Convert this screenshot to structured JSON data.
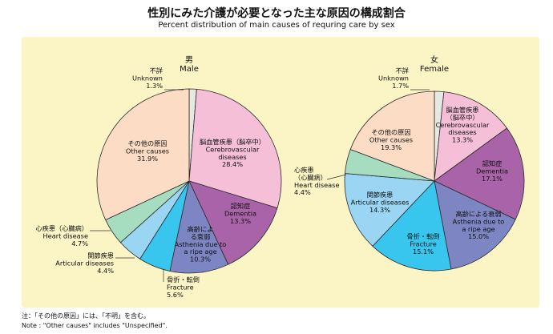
{
  "title_jp": "性別にみた介護が必要となった主な原因の構成割合",
  "title_en": "Percent distribution of main causes of requring care by sex",
  "note_jp": "注：「その他の原因」には、「不明」を含む。",
  "note_en": "Note : \"Other causes\" includes \"Unspecified\".",
  "colors": {
    "panel": "#fbf4c4",
    "cerebrovascular": "#f5bfd7",
    "dementia": "#a963a8",
    "asthenia": "#7d86c3",
    "fracture": "#38c6ee",
    "articular": "#9ad6f3",
    "heart": "#a6ddc0",
    "other": "#fcdcc4",
    "unknown": "#e8e8e2"
  },
  "chart_data": [
    {
      "type": "pie",
      "id": "male",
      "title_jp": "男",
      "title_en": "Male",
      "categories": [
        "unknown",
        "cerebrovascular",
        "dementia",
        "asthenia",
        "fracture",
        "articular",
        "heart",
        "other"
      ],
      "values": [
        1.3,
        28.4,
        13.3,
        10.3,
        5.6,
        4.4,
        4.7,
        31.9
      ],
      "slices": [
        {
          "key": "unknown",
          "value": 1.3,
          "label_jp": "不詳",
          "label_en": "Unknown",
          "value_label": "1.3%"
        },
        {
          "key": "cerebrovascular",
          "value": 28.4,
          "label_jp": "脳血管疾患（脳卒中）",
          "label_en": "Cerebrovascular diseases",
          "value_label": "28.4%"
        },
        {
          "key": "dementia",
          "value": 13.3,
          "label_jp": "認知症",
          "label_en": "Dementia",
          "value_label": "13.3%"
        },
        {
          "key": "asthenia",
          "value": 10.3,
          "label_jp": "高齢による衰弱",
          "label_en": "Asthenia due to a ripe age",
          "value_label": "10.3%"
        },
        {
          "key": "fracture",
          "value": 5.6,
          "label_jp": "骨折・転倒",
          "label_en": "Fracture",
          "value_label": "5.6%"
        },
        {
          "key": "articular",
          "value": 4.4,
          "label_jp": "関節疾患",
          "label_en": "Articular diseases",
          "value_label": "4.4%"
        },
        {
          "key": "heart",
          "value": 4.7,
          "label_jp": "心疾患（心臓病）",
          "label_en": "Heart disease",
          "value_label": "4.7%"
        },
        {
          "key": "other",
          "value": 31.9,
          "label_jp": "その他の原因",
          "label_en": "Other causes",
          "value_label": "31.9%"
        }
      ]
    },
    {
      "type": "pie",
      "id": "female",
      "title_jp": "女",
      "title_en": "Female",
      "categories": [
        "unknown",
        "cerebrovascular",
        "dementia",
        "asthenia",
        "fracture",
        "articular",
        "heart",
        "other"
      ],
      "values": [
        1.7,
        13.3,
        17.1,
        15.0,
        15.1,
        14.3,
        4.4,
        19.3
      ],
      "slices": [
        {
          "key": "unknown",
          "value": 1.7,
          "label_jp": "不詳",
          "label_en": "Unknown",
          "value_label": "1.7%"
        },
        {
          "key": "cerebrovascular",
          "value": 13.3,
          "label_jp": "脳血管疾患（脳卒中）",
          "label_en": "Cerebrovascular diseases",
          "value_label": "13.3%"
        },
        {
          "key": "dementia",
          "value": 17.1,
          "label_jp": "認知症",
          "label_en": "Dementia",
          "value_label": "17.1%"
        },
        {
          "key": "asthenia",
          "value": 15.0,
          "label_jp": "高齢による衰弱",
          "label_en": "Asthenia due to a ripe age",
          "value_label": "15.0%"
        },
        {
          "key": "fracture",
          "value": 15.1,
          "label_jp": "骨折・転倒",
          "label_en": "Fracture",
          "value_label": "15.1%"
        },
        {
          "key": "articular",
          "value": 14.3,
          "label_jp": "関節疾患",
          "label_en": "Articular diseases",
          "value_label": "14.3%"
        },
        {
          "key": "heart",
          "value": 4.4,
          "label_jp": "心疾患（心臓病）",
          "label_en": "Heart disease",
          "value_label": "4.4%"
        },
        {
          "key": "other",
          "value": 19.3,
          "label_jp": "その他の原因",
          "label_en": "Other causes",
          "value_label": "19.3%"
        }
      ]
    }
  ]
}
